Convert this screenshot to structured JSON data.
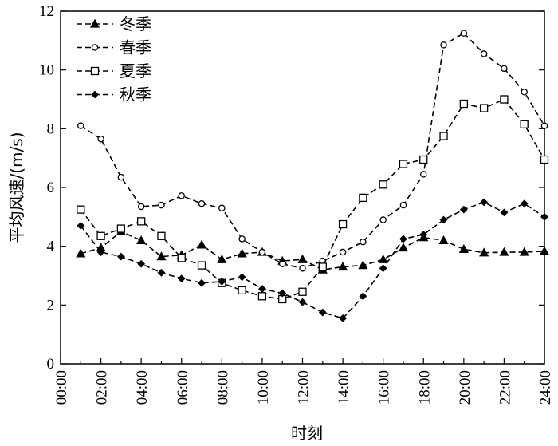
{
  "chart_data": {
    "type": "line",
    "title": "",
    "xlabel": "时刻",
    "ylabel": "平均风速/(m/s)",
    "xlim": [
      0,
      24
    ],
    "ylim": [
      0,
      12
    ],
    "x_ticks": [
      "00:00",
      "02:00",
      "04:00",
      "06:00",
      "08:00",
      "10:00",
      "12:00",
      "14:00",
      "16:00",
      "18:00",
      "20:00",
      "22:00",
      "24:00"
    ],
    "y_ticks": [
      "0",
      "2",
      "4",
      "6",
      "8",
      "10",
      "12"
    ],
    "grid": false,
    "legend_position": "top-left",
    "x": [
      1,
      2,
      3,
      4,
      5,
      6,
      7,
      8,
      9,
      10,
      11,
      12,
      13,
      14,
      15,
      16,
      17,
      18,
      19,
      20,
      21,
      22,
      23,
      24
    ],
    "series": [
      {
        "name": "冬季",
        "marker": "filled-triangle",
        "values": [
          3.75,
          3.95,
          4.5,
          4.2,
          3.65,
          3.7,
          4.05,
          3.55,
          3.75,
          3.8,
          3.5,
          3.55,
          3.2,
          3.3,
          3.35,
          3.55,
          3.95,
          4.3,
          4.2,
          3.9,
          3.78,
          3.8,
          3.8,
          3.83
        ]
      },
      {
        "name": "春季",
        "marker": "open-circle",
        "values": [
          8.1,
          7.65,
          6.35,
          5.35,
          5.4,
          5.72,
          5.45,
          5.3,
          4.25,
          3.8,
          3.4,
          3.25,
          3.5,
          3.8,
          4.15,
          4.9,
          5.4,
          6.45,
          10.85,
          11.25,
          10.55,
          10.05,
          9.25,
          8.1
        ]
      },
      {
        "name": "夏季",
        "marker": "open-square",
        "values": [
          5.25,
          4.35,
          4.6,
          4.85,
          4.35,
          3.6,
          3.35,
          2.75,
          2.5,
          2.3,
          2.2,
          2.45,
          3.3,
          4.75,
          5.65,
          6.1,
          6.8,
          6.95,
          7.75,
          8.85,
          8.7,
          9.0,
          8.15,
          6.95
        ]
      },
      {
        "name": "秋季",
        "marker": "filled-diamond",
        "values": [
          4.7,
          3.8,
          3.65,
          3.4,
          3.1,
          2.9,
          2.75,
          2.8,
          2.95,
          2.55,
          2.4,
          2.1,
          1.75,
          1.55,
          2.3,
          3.25,
          4.25,
          4.4,
          4.9,
          5.25,
          5.5,
          5.15,
          5.45,
          5.0
        ]
      }
    ]
  }
}
